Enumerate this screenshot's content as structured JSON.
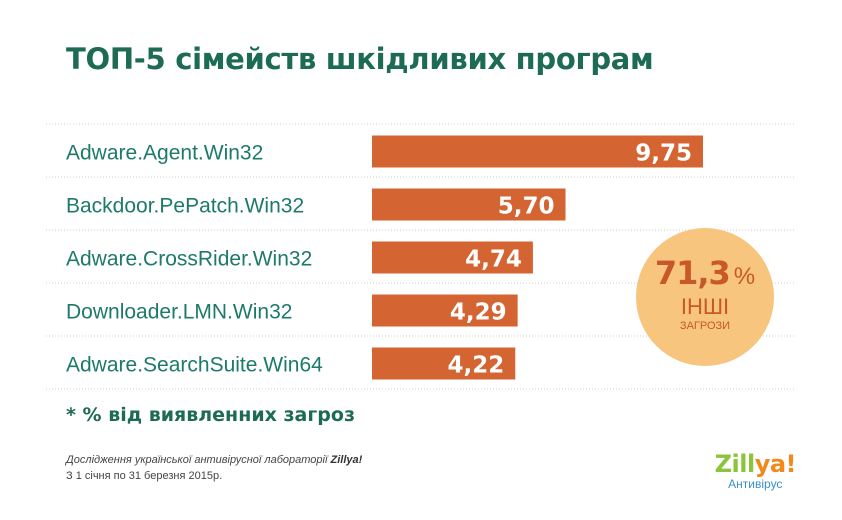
{
  "title": "ТОП-5 сімейств шкідливих програм",
  "chart_data": {
    "type": "bar",
    "orientation": "horizontal",
    "categories": [
      "Adware.Agent.Win32",
      "Backdoor.PePatch.Win32",
      "Adware.CrossRider.Win32",
      "Downloader.LMN.Win32",
      "Adware.SearchSuite.Win64"
    ],
    "values": [
      9.75,
      5.7,
      4.74,
      4.29,
      4.22
    ],
    "value_labels": [
      "9,75",
      "5,70",
      "4,74",
      "4,29",
      "4,22"
    ],
    "xlim": [
      0,
      9.75
    ],
    "grid": false,
    "legend": "none"
  },
  "badge": {
    "value": "71,3",
    "unit": "%",
    "label_line1": "ІНШІ",
    "label_line2": "ЗАГРОЗИ"
  },
  "footnote": "* % від виявленних загроз",
  "credits": {
    "line1_prefix": "Дослідження української антивірусної лабораторії",
    "line1_brand": "Zillya!",
    "line2": "З 1 січня по 31 березня 2015р."
  },
  "logo": {
    "part1": "Zill",
    "part2": "ya!",
    "subtitle": "Антивірус"
  },
  "colors": {
    "title": "#1d6b55",
    "label": "#1d7a6a",
    "bar": "#d46533",
    "separator": "#cccccc",
    "badge_fill": "#f7c57e",
    "badge_text": "#c8582a"
  }
}
